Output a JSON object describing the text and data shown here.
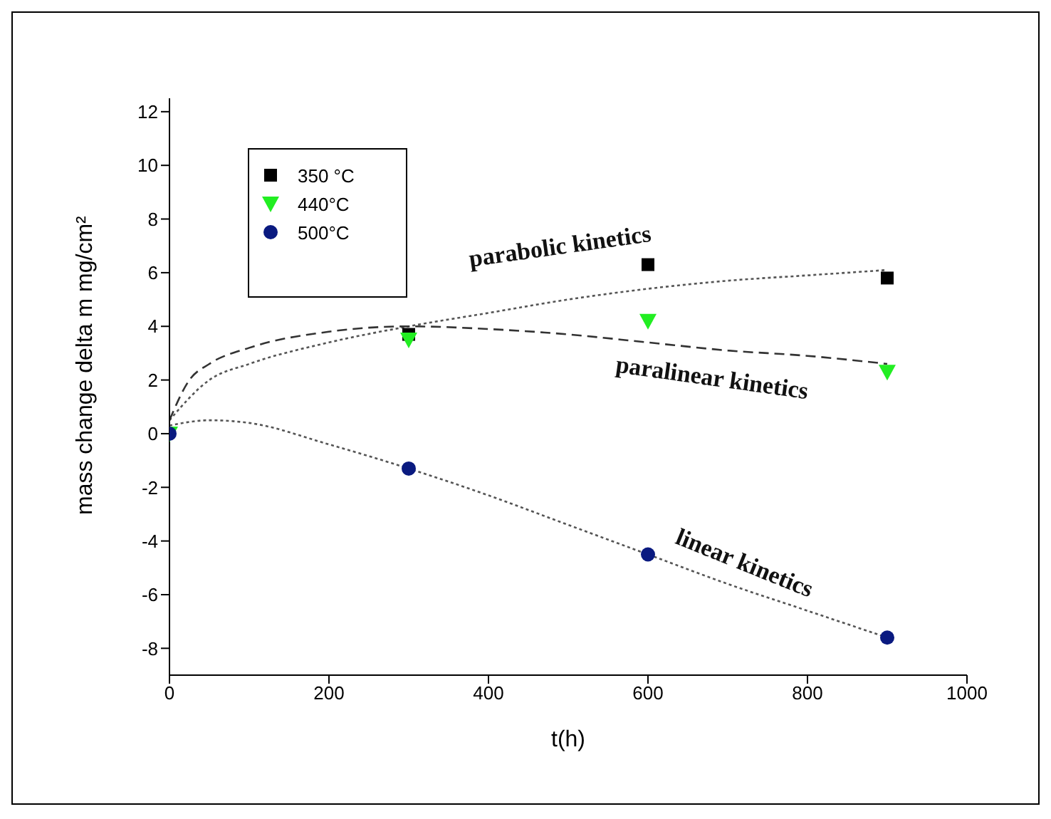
{
  "chart_data": {
    "type": "scatter",
    "xlabel": "t(h)",
    "ylabel": "mass change delta m mg/cm²",
    "xlim": [
      0,
      1000
    ],
    "xticks": [
      0,
      200,
      400,
      600,
      800,
      1000
    ],
    "ylim": [
      -9,
      12.5
    ],
    "yticks": [
      -8,
      -6,
      -4,
      -2,
      0,
      2,
      4,
      8,
      6,
      10,
      12
    ],
    "legend": "top left",
    "grid": false,
    "series": [
      {
        "name": "350 °C",
        "color": "#000000",
        "marker": "square",
        "x": [
          300,
          600,
          900
        ],
        "values": [
          3.7,
          6.3,
          5.8
        ]
      },
      {
        "name": "440°C",
        "color": "#22ee22",
        "marker": "triangle",
        "x": [
          0,
          300,
          600,
          900
        ],
        "values": [
          0,
          3.5,
          4.2,
          2.3
        ]
      },
      {
        "name": "500°C",
        "color": "#0a1a80",
        "marker": "circle",
        "x": [
          0,
          300,
          600,
          900
        ],
        "values": [
          0,
          -1.3,
          -4.5,
          -7.6
        ]
      },
      {
        "type": "line",
        "color": "#555555",
        "line_style": "dotted",
        "marker": "none",
        "x": [
          0,
          50,
          100,
          200,
          300,
          400,
          500,
          600,
          700,
          800,
          900
        ],
        "values": [
          0.5,
          2.0,
          2.6,
          3.4,
          4.0,
          4.5,
          5.0,
          5.4,
          5.7,
          5.9,
          6.1
        ]
      },
      {
        "type": "line",
        "color": "#333333",
        "line_style": "dashed",
        "marker": "none",
        "x": [
          0,
          25,
          50,
          100,
          200,
          300,
          400,
          500,
          600,
          700,
          800,
          900
        ],
        "values": [
          0.5,
          2.0,
          2.6,
          3.2,
          3.8,
          4.0,
          3.9,
          3.7,
          3.4,
          3.1,
          2.9,
          2.6
        ]
      },
      {
        "type": "line",
        "color": "#555555",
        "line_style": "dotted",
        "marker": "none",
        "x": [
          0,
          50,
          100,
          200,
          300,
          400,
          500,
          600,
          700,
          800,
          900
        ],
        "values": [
          0.3,
          0.5,
          0.4,
          -0.4,
          -1.3,
          -2.3,
          -3.4,
          -4.5,
          -5.6,
          -6.6,
          -7.6
        ]
      }
    ],
    "annotations": [
      "parabolic kinetics",
      "paralinear kinetics",
      "linear kinetics"
    ]
  }
}
